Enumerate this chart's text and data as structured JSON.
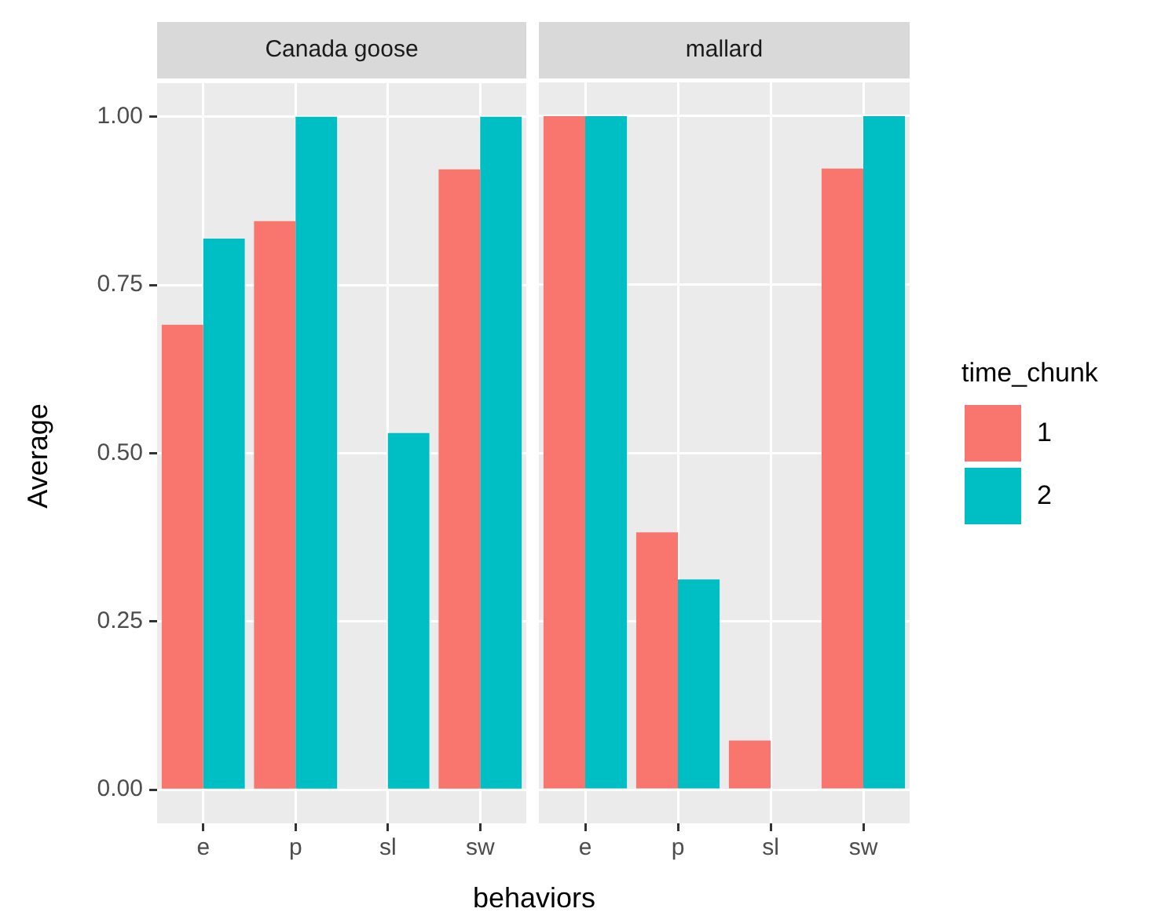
{
  "chart_data": [
    {
      "type": "bar",
      "title": "Canada goose",
      "xlabel": "behaviors",
      "ylabel": "Average",
      "legend_title": "time_chunk",
      "legend": "right",
      "categories": [
        "e",
        "p",
        "sl",
        "sw"
      ],
      "series": [
        {
          "name": "1",
          "color": "#f8766d",
          "values": [
            0.691,
            0.845,
            null,
            0.922
          ]
        },
        {
          "name": "2",
          "color": "#00bfc4",
          "values": [
            0.819,
            1,
            0.53,
            1
          ]
        }
      ],
      "ylim": [
        -0.05,
        1.05
      ],
      "yticks": [
        {
          "value": 0,
          "label": "0.00"
        },
        {
          "value": 0.25,
          "label": "0.25"
        },
        {
          "value": 0.5,
          "label": "0.50"
        },
        {
          "value": 0.75,
          "label": "0.75"
        },
        {
          "value": 1,
          "label": "1.00"
        }
      ],
      "grid": true
    },
    {
      "type": "bar",
      "title": "mallard",
      "tick_labels": "x",
      "categories": [
        "e",
        "p",
        "sl",
        "sw"
      ],
      "series": [
        {
          "name": "1",
          "color": "#f8766d",
          "values": [
            1,
            0.382,
            0.073,
            0.922
          ]
        },
        {
          "name": "2",
          "color": "#00bfc4",
          "values": [
            1,
            0.312,
            null,
            1
          ]
        }
      ],
      "ylim": [
        -0.05,
        1.05
      ],
      "yticks": [
        0,
        0.25,
        0.5,
        0.75,
        1
      ],
      "grid": true
    }
  ]
}
